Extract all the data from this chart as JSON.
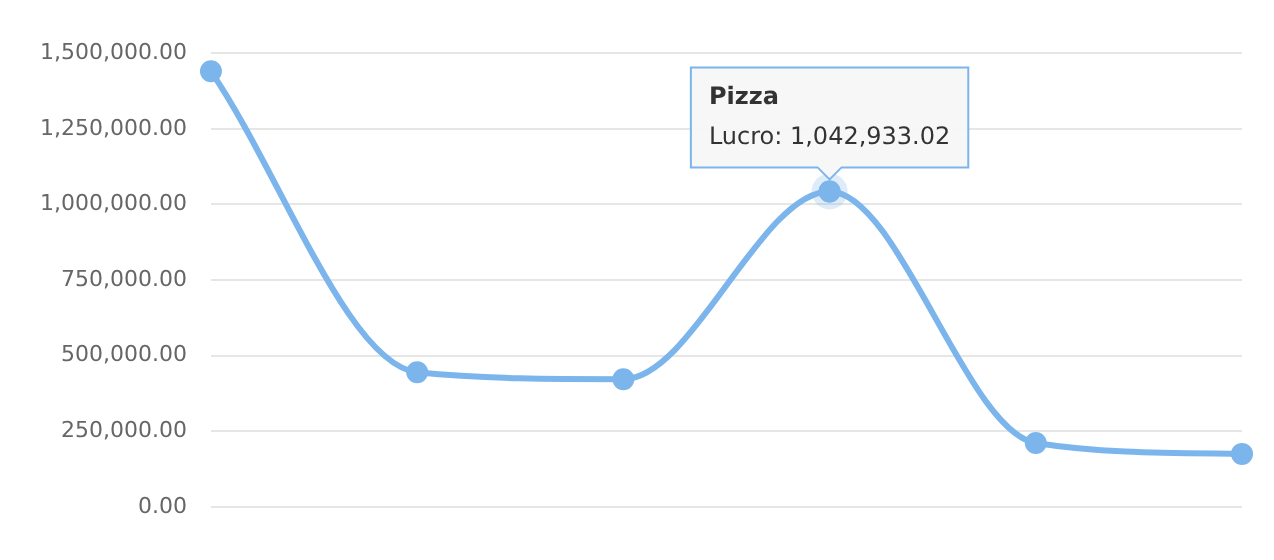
{
  "chart_data": {
    "type": "line",
    "categories": [
      null,
      null,
      null,
      "Pizza",
      null,
      null
    ],
    "series": [
      {
        "color": "#7cb5ec",
        "values": [
          1440000,
          445000,
          422000,
          1042933.02,
          211000,
          175000
        ]
      }
    ],
    "annotations": [
      {
        "text": "Lucro: 1,042,933.02",
        "x": "Pizza",
        "y": 1042933.02
      }
    ],
    "ylim": [
      0,
      1500000
    ],
    "yticks": [
      {
        "value": 0,
        "label": "0.00"
      },
      {
        "value": 250000,
        "label": "250,000.00"
      },
      {
        "value": 500000,
        "label": "500,000.00"
      },
      {
        "value": 750000,
        "label": "750,000.00"
      },
      {
        "value": 1000000,
        "label": "1,000,000.00"
      },
      {
        "value": 1250000,
        "label": "1,250,000.00"
      },
      {
        "value": 1500000,
        "label": "1,500,000.00"
      }
    ],
    "grid": "y",
    "legend": false,
    "marker": "circle",
    "line_style": "solid",
    "tick_labels": "y"
  }
}
